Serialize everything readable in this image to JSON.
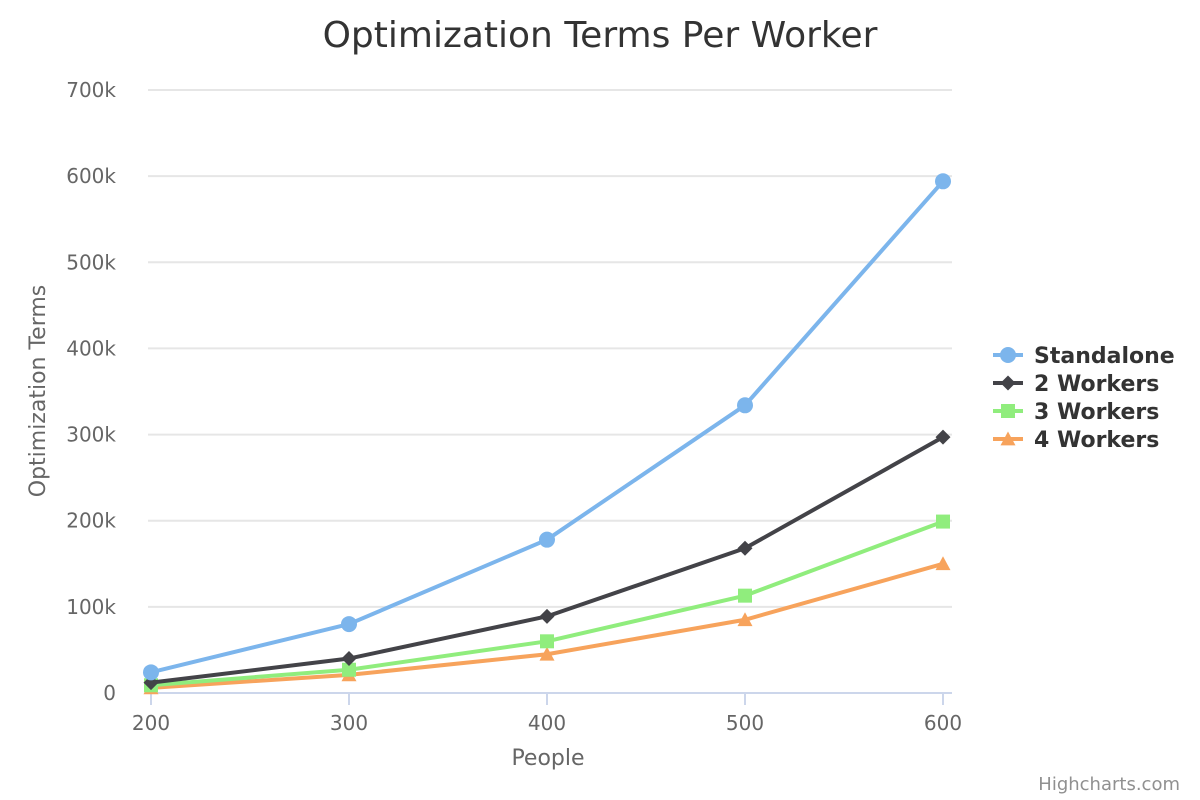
{
  "chart_data": {
    "type": "line",
    "title": "Optimization Terms Per Worker",
    "xlabel": "People",
    "ylabel": "Optimization Terms",
    "x": [
      200,
      300,
      400,
      500,
      600
    ],
    "x_ticks": [
      "200",
      "300",
      "400",
      "500",
      "600"
    ],
    "xlim": [
      200,
      600
    ],
    "ylim": [
      0,
      700000
    ],
    "y_ticks": [
      {
        "value": 0,
        "label": "0"
      },
      {
        "value": 100000,
        "label": "100k"
      },
      {
        "value": 200000,
        "label": "200k"
      },
      {
        "value": 300000,
        "label": "300k"
      },
      {
        "value": 400000,
        "label": "400k"
      },
      {
        "value": 500000,
        "label": "500k"
      },
      {
        "value": 600000,
        "label": "600k"
      },
      {
        "value": 700000,
        "label": "700k"
      }
    ],
    "grid": true,
    "legend": {
      "position": "right"
    },
    "series": [
      {
        "name": "Standalone",
        "color": "#7cb5ec",
        "marker": "circle",
        "values": [
          24000,
          80000,
          178000,
          334000,
          594000
        ]
      },
      {
        "name": "2 Workers",
        "color": "#434348",
        "marker": "diamond",
        "values": [
          12000,
          40000,
          89000,
          168000,
          297000
        ]
      },
      {
        "name": "3 Workers",
        "color": "#90ed7d",
        "marker": "square",
        "values": [
          9000,
          27000,
          60000,
          113000,
          199000
        ]
      },
      {
        "name": "4 Workers",
        "color": "#f7a35c",
        "marker": "triangle",
        "values": [
          6000,
          21000,
          45000,
          85000,
          150000
        ]
      }
    ]
  },
  "credits": "Highcharts.com"
}
